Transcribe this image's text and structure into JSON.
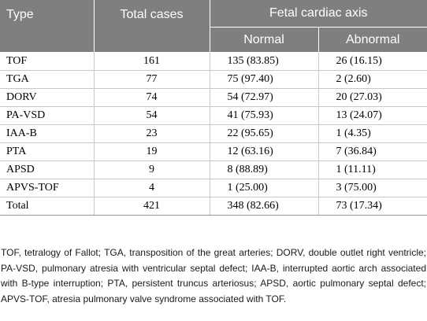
{
  "table": {
    "header": {
      "type": "Type",
      "total_cases": "Total cases",
      "fetal_cardiac_axis": "Fetal cardiac axis",
      "normal": "Normal",
      "abnormal": "Abnormal"
    },
    "rows": [
      {
        "type": "TOF",
        "total": "161",
        "normal": "135 (83.85)",
        "abnormal": "26 (16.15)"
      },
      {
        "type": "TGA",
        "total": "77",
        "normal": "75 (97.40)",
        "abnormal": "2 (2.60)"
      },
      {
        "type": "DORV",
        "total": "74",
        "normal": "54 (72.97)",
        "abnormal": "20 (27.03)"
      },
      {
        "type": "PA-VSD",
        "total": "54",
        "normal": "41 (75.93)",
        "abnormal": "13 (24.07)"
      },
      {
        "type": "IAA-B",
        "total": "23",
        "normal": "22 (95.65)",
        "abnormal": "1 (4.35)"
      },
      {
        "type": "PTA",
        "total": "19",
        "normal": "12 (63.16)",
        "abnormal": "7 (36.84)"
      },
      {
        "type": "APSD",
        "total": "9",
        "normal": "8 (88.89)",
        "abnormal": "1 (11.11)"
      },
      {
        "type": "APVS-TOF",
        "total": "4",
        "normal": "1 (25.00)",
        "abnormal": "3 (75.00)"
      },
      {
        "type": "Total",
        "total": "421",
        "normal": "348 (82.66)",
        "abnormal": "73 (17.34)"
      }
    ]
  },
  "footnote": "TOF, tetralogy of Fallot; TGA, transposition of the great arteries; DORV, double outlet right ventricle; PA-VSD, pulmonary atresia with ventricular septal defect; IAA-B, interrupted aortic arch associated with B-type interruption; PTA, persistent truncus arteriosus; APSD, aortic pulmonary septal defect; APVS-TOF, atresia pulmonary valve syndrome associated with TOF.",
  "colors": {
    "header_bg": "#7f7f7f",
    "header_text": "#ffffff",
    "row_border": "#c8c8c8"
  }
}
